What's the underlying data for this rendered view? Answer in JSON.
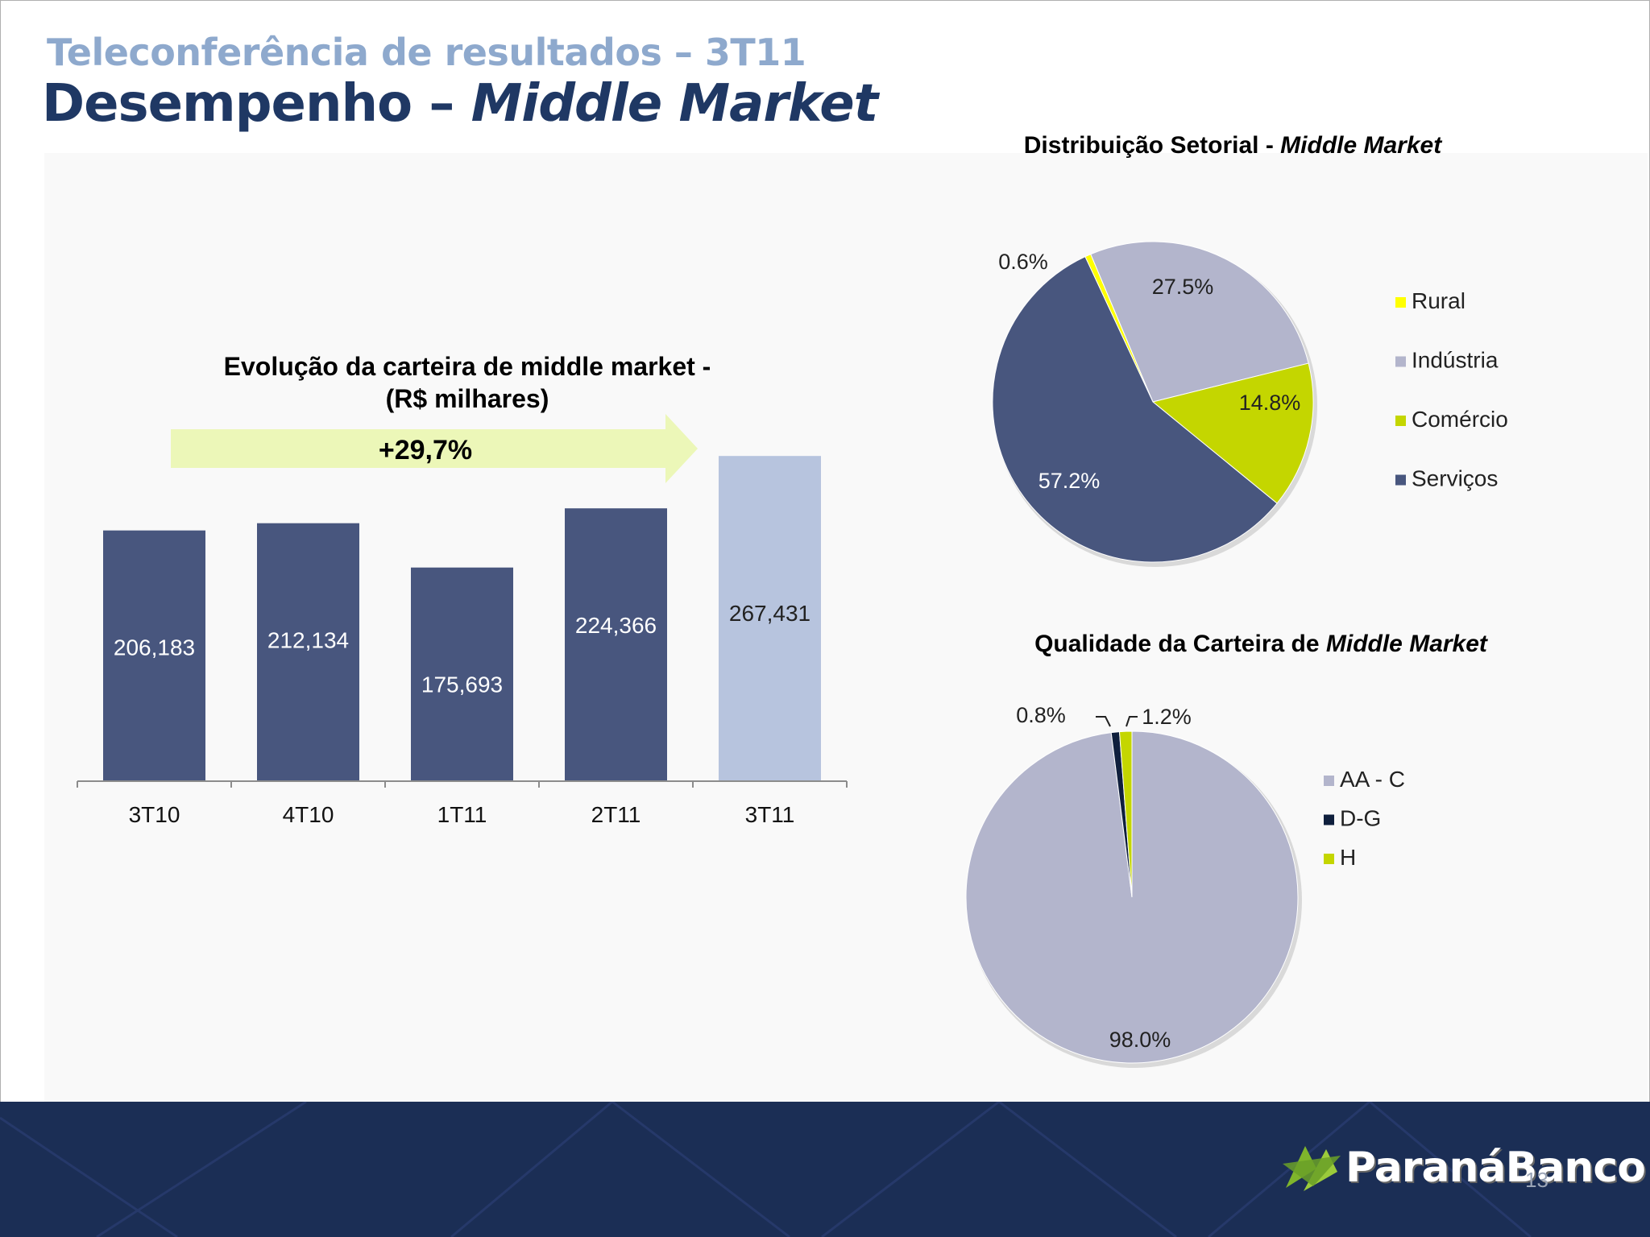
{
  "header": {
    "subtitle": "Teleconferência de resultados – 3T11",
    "title_main": "Desempenho – ",
    "title_italic": "Middle Market"
  },
  "footer": {
    "brand": "ParanáBanco",
    "page_number": "13",
    "background_color": "#1b2e55"
  },
  "chart_data": [
    {
      "type": "bar",
      "title_line1": "Evolução da carteira de middle market  -",
      "title_line2": "(R$ milhares)",
      "growth_label": "+29,7%",
      "categories": [
        "3T10",
        "4T10",
        "1T11",
        "2T11",
        "3T11"
      ],
      "values": [
        206183,
        212134,
        175693,
        224366,
        267431
      ],
      "value_labels": [
        "206,183",
        "212,134",
        "175,693",
        "224,366",
        "267,431"
      ],
      "colors": [
        "#48567e",
        "#48567e",
        "#48567e",
        "#48567e",
        "#b7c4de"
      ],
      "label_colors": [
        "#ffffff",
        "#ffffff",
        "#ffffff",
        "#ffffff",
        "#222222"
      ],
      "ylim": [
        0,
        300000
      ],
      "grid": false
    },
    {
      "type": "pie",
      "title": "Distribuição Setorial - ",
      "title_italic": "Middle Market",
      "labels": [
        "Rural",
        "Indústria",
        "Comércio",
        "Serviços"
      ],
      "values": [
        0.6,
        27.5,
        14.8,
        57.2
      ],
      "value_labels": [
        "0.6%",
        "27.5%",
        "14.8%",
        "57.2%"
      ],
      "colors": [
        "#ffff00",
        "#b3b5cc",
        "#c4d600",
        "#48567e"
      ],
      "legend": "right"
    },
    {
      "type": "pie",
      "title": "Qualidade da Carteira de ",
      "title_italic": "Middle Market",
      "labels": [
        "AA - C",
        "D-G",
        "H"
      ],
      "values": [
        98.0,
        0.8,
        1.2
      ],
      "value_labels": [
        "98.0%",
        "0.8%",
        "1.2%"
      ],
      "colors": [
        "#b3b5cc",
        "#0f1f3d",
        "#c4d600"
      ],
      "legend": "right"
    }
  ]
}
